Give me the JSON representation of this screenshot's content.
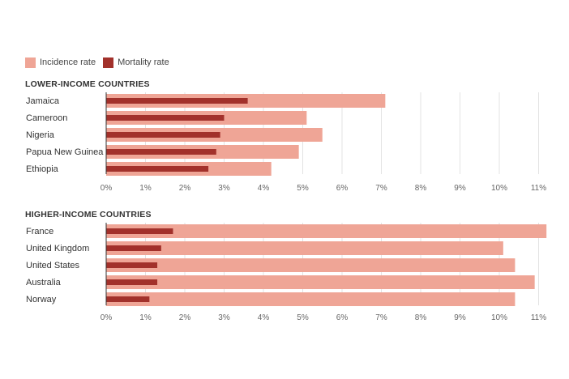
{
  "colors": {
    "incidence": "#efa596",
    "mortality": "#a2312b",
    "grid": "#e3e3e3",
    "axis": "#333333",
    "text": "#333333",
    "tick": "#666666"
  },
  "legend": {
    "incidence_label": "Incidence rate",
    "mortality_label": "Mortality rate"
  },
  "chart_data": [
    {
      "type": "bar",
      "orientation": "horizontal",
      "title": "LOWER-INCOME COUNTRIES",
      "categories": [
        "Jamaica",
        "Cameroon",
        "Nigeria",
        "Papua New Guinea",
        "Ethiopia"
      ],
      "series": [
        {
          "name": "Incidence rate",
          "values": [
            7.1,
            5.1,
            5.5,
            4.9,
            4.2
          ]
        },
        {
          "name": "Mortality rate",
          "values": [
            3.6,
            3.0,
            2.9,
            2.8,
            2.6
          ]
        }
      ],
      "xlim": [
        0,
        11
      ],
      "xticks": [
        "0%",
        "1%",
        "2%",
        "3%",
        "4%",
        "5%",
        "6%",
        "7%",
        "8%",
        "9%",
        "10%",
        "11%"
      ],
      "grid": true,
      "legend": "top-left"
    },
    {
      "type": "bar",
      "orientation": "horizontal",
      "title": "HIGHER-INCOME COUNTRIES",
      "categories": [
        "France",
        "United Kingdom",
        "United States",
        "Australia",
        "Norway"
      ],
      "series": [
        {
          "name": "Incidence rate",
          "values": [
            11.2,
            10.1,
            10.4,
            10.9,
            10.4
          ]
        },
        {
          "name": "Mortality rate",
          "values": [
            1.7,
            1.4,
            1.3,
            1.3,
            1.1
          ]
        }
      ],
      "xlim": [
        0,
        11
      ],
      "xticks": [
        "0%",
        "1%",
        "2%",
        "3%",
        "4%",
        "5%",
        "6%",
        "7%",
        "8%",
        "9%",
        "10%",
        "11%"
      ],
      "grid": true,
      "legend": "top-left"
    }
  ]
}
